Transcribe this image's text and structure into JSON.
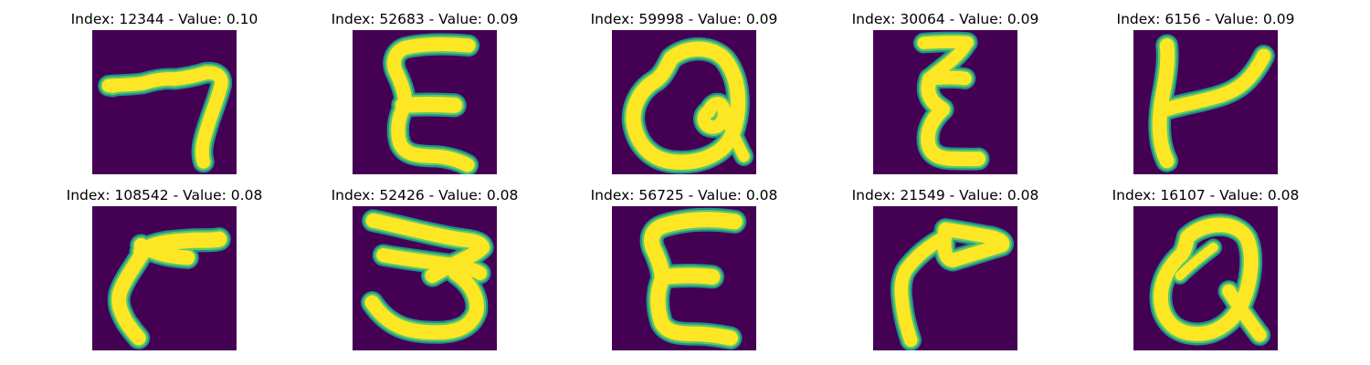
{
  "colors": {
    "background": "#440154",
    "edge_mid": "#21918c",
    "edge_light": "#5ec962",
    "stroke": "#fde725"
  },
  "panels": [
    {
      "title": "Index: 12344 - Value: 0.10"
    },
    {
      "title": "Index: 52683 - Value: 0.09"
    },
    {
      "title": "Index: 59998 - Value: 0.09"
    },
    {
      "title": "Index: 30064 - Value: 0.09"
    },
    {
      "title": "Index: 6156 - Value: 0.09"
    },
    {
      "title": "Index: 108542 - Value: 0.08"
    },
    {
      "title": "Index: 52426 - Value: 0.08"
    },
    {
      "title": "Index: 56725 - Value: 0.08"
    },
    {
      "title": "Index: 21549 - Value: 0.08"
    },
    {
      "title": "Index: 16107 - Value: 0.08"
    }
  ]
}
